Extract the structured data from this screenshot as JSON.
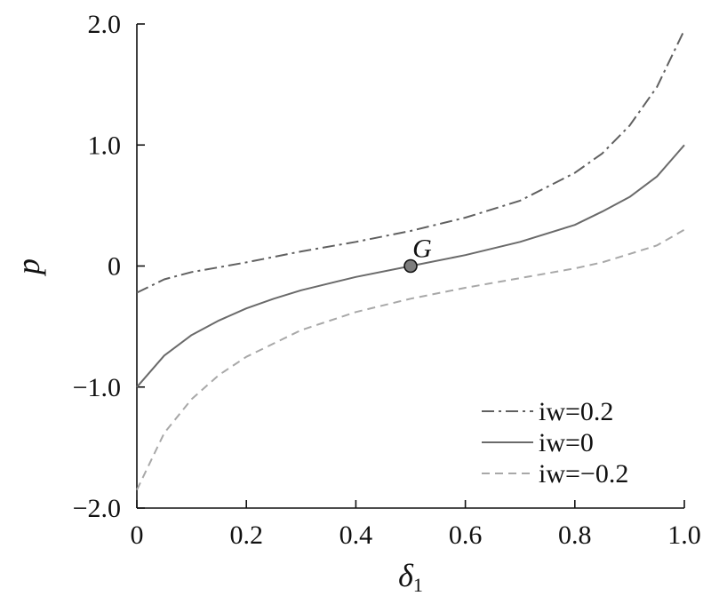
{
  "chart_data": {
    "type": "line",
    "xlabel": "δ",
    "xlabel_sub": "1",
    "ylabel": "p",
    "xlim": [
      0,
      1.0
    ],
    "ylim": [
      -2.0,
      2.0
    ],
    "x_ticks": [
      "0",
      "0.2",
      "0.4",
      "0.6",
      "0.8",
      "1.0"
    ],
    "y_ticks": [
      "−2.0",
      "−1.0",
      "0",
      "1.0",
      "2.0"
    ],
    "grid": false,
    "legend_position": "bottom-right",
    "series": [
      {
        "name": "iw=0.2",
        "color": "#606060",
        "dash": "dashdot",
        "x": [
          0,
          0.05,
          0.1,
          0.15,
          0.2,
          0.3,
          0.4,
          0.5,
          0.6,
          0.7,
          0.8,
          0.85,
          0.9,
          0.95,
          1.0
        ],
        "y": [
          -0.22,
          -0.11,
          -0.05,
          -0.01,
          0.03,
          0.12,
          0.2,
          0.29,
          0.4,
          0.54,
          0.77,
          0.93,
          1.16,
          1.48,
          1.95
        ]
      },
      {
        "name": "iw=0",
        "color": "#6a6a6a",
        "dash": "solid",
        "x": [
          0,
          0.05,
          0.1,
          0.15,
          0.2,
          0.25,
          0.3,
          0.4,
          0.5,
          0.6,
          0.7,
          0.8,
          0.85,
          0.9,
          0.95,
          1.0
        ],
        "y": [
          -1.0,
          -0.74,
          -0.57,
          -0.45,
          -0.35,
          -0.27,
          -0.2,
          -0.09,
          0.0,
          0.09,
          0.2,
          0.34,
          0.45,
          0.57,
          0.74,
          1.0
        ]
      },
      {
        "name": "iw=−0.2",
        "color": "#a8a8a8",
        "dash": "dashed",
        "x": [
          0,
          0.05,
          0.1,
          0.15,
          0.2,
          0.3,
          0.4,
          0.5,
          0.6,
          0.7,
          0.8,
          0.85,
          0.9,
          0.95,
          1.0
        ],
        "y": [
          -1.85,
          -1.38,
          -1.1,
          -0.9,
          -0.75,
          -0.53,
          -0.38,
          -0.27,
          -0.18,
          -0.1,
          -0.02,
          0.03,
          0.1,
          0.17,
          0.3
        ]
      }
    ],
    "annotations": [
      {
        "label": "G",
        "x": 0.5,
        "y": 0.0
      }
    ]
  }
}
